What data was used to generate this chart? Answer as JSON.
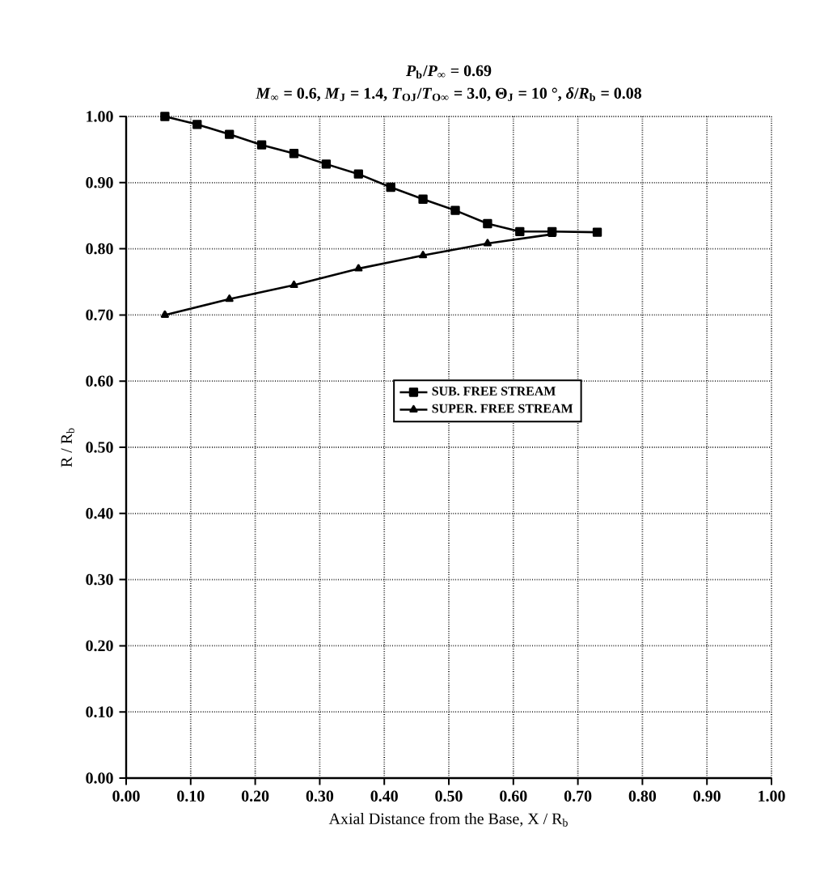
{
  "chart_data": {
    "type": "line",
    "title": "*P*$_{b}$/*P*$_{∞}$ = 0.69",
    "subtitle": "*M*$_{∞}$ = 0.6, *M*$_{J}$ = 1.4, *T*$_{OJ}$/*T*$_{O∞}$ = 3.0, Θ$_{J}$ = 10 °, *δ*/*R*$_{b}$ = 0.08",
    "xlabel": "Axial Distance from the Base, X / R$_{b}$",
    "ylabel": "R / R$_{b}$",
    "series": [
      {
        "name": "SUB. FREE STREAM",
        "color": "#000000",
        "marker": "square",
        "x": [
          0.06,
          0.11,
          0.16,
          0.21,
          0.26,
          0.31,
          0.36,
          0.41,
          0.46,
          0.51,
          0.56,
          0.61,
          0.66,
          0.73
        ],
        "values": [
          1.0,
          0.988,
          0.973,
          0.957,
          0.944,
          0.928,
          0.913,
          0.893,
          0.875,
          0.858,
          0.838,
          0.826,
          0.826,
          0.825
        ]
      },
      {
        "name": "SUPER. FREE STREAM",
        "color": "#000000",
        "marker": "triangle",
        "x": [
          0.06,
          0.16,
          0.26,
          0.36,
          0.46,
          0.56,
          0.66
        ],
        "values": [
          0.7,
          0.724,
          0.745,
          0.77,
          0.79,
          0.808,
          0.822
        ]
      }
    ],
    "xlim": [
      0,
      1
    ],
    "ylim": [
      0,
      1
    ],
    "xticks": [
      {
        "value": 0,
        "label": "0.00"
      },
      {
        "value": 0.1,
        "label": "0.10"
      },
      {
        "value": 0.2,
        "label": "0.20"
      },
      {
        "value": 0.3,
        "label": "0.30"
      },
      {
        "value": 0.4,
        "label": "0.40"
      },
      {
        "value": 0.5,
        "label": "0.50"
      },
      {
        "value": 0.6,
        "label": "0.60"
      },
      {
        "value": 0.7,
        "label": "0.70"
      },
      {
        "value": 0.8,
        "label": "0.80"
      },
      {
        "value": 0.9,
        "label": "0.90"
      },
      {
        "value": 1,
        "label": "1.00"
      }
    ],
    "yticks": [
      {
        "value": 0,
        "label": "0.00"
      },
      {
        "value": 0.1,
        "label": "0.10"
      },
      {
        "value": 0.2,
        "label": "0.20"
      },
      {
        "value": 0.3,
        "label": "0.30"
      },
      {
        "value": 0.4,
        "label": "0.40"
      },
      {
        "value": 0.5,
        "label": "0.50"
      },
      {
        "value": 0.6,
        "label": "0.60"
      },
      {
        "value": 0.7,
        "label": "0.70"
      },
      {
        "value": 0.8,
        "label": "0.80"
      },
      {
        "value": 0.9,
        "label": "0.90"
      },
      {
        "value": 1,
        "label": "1.00"
      }
    ],
    "grid": true,
    "legend": "center",
    "line_style": "solid"
  }
}
